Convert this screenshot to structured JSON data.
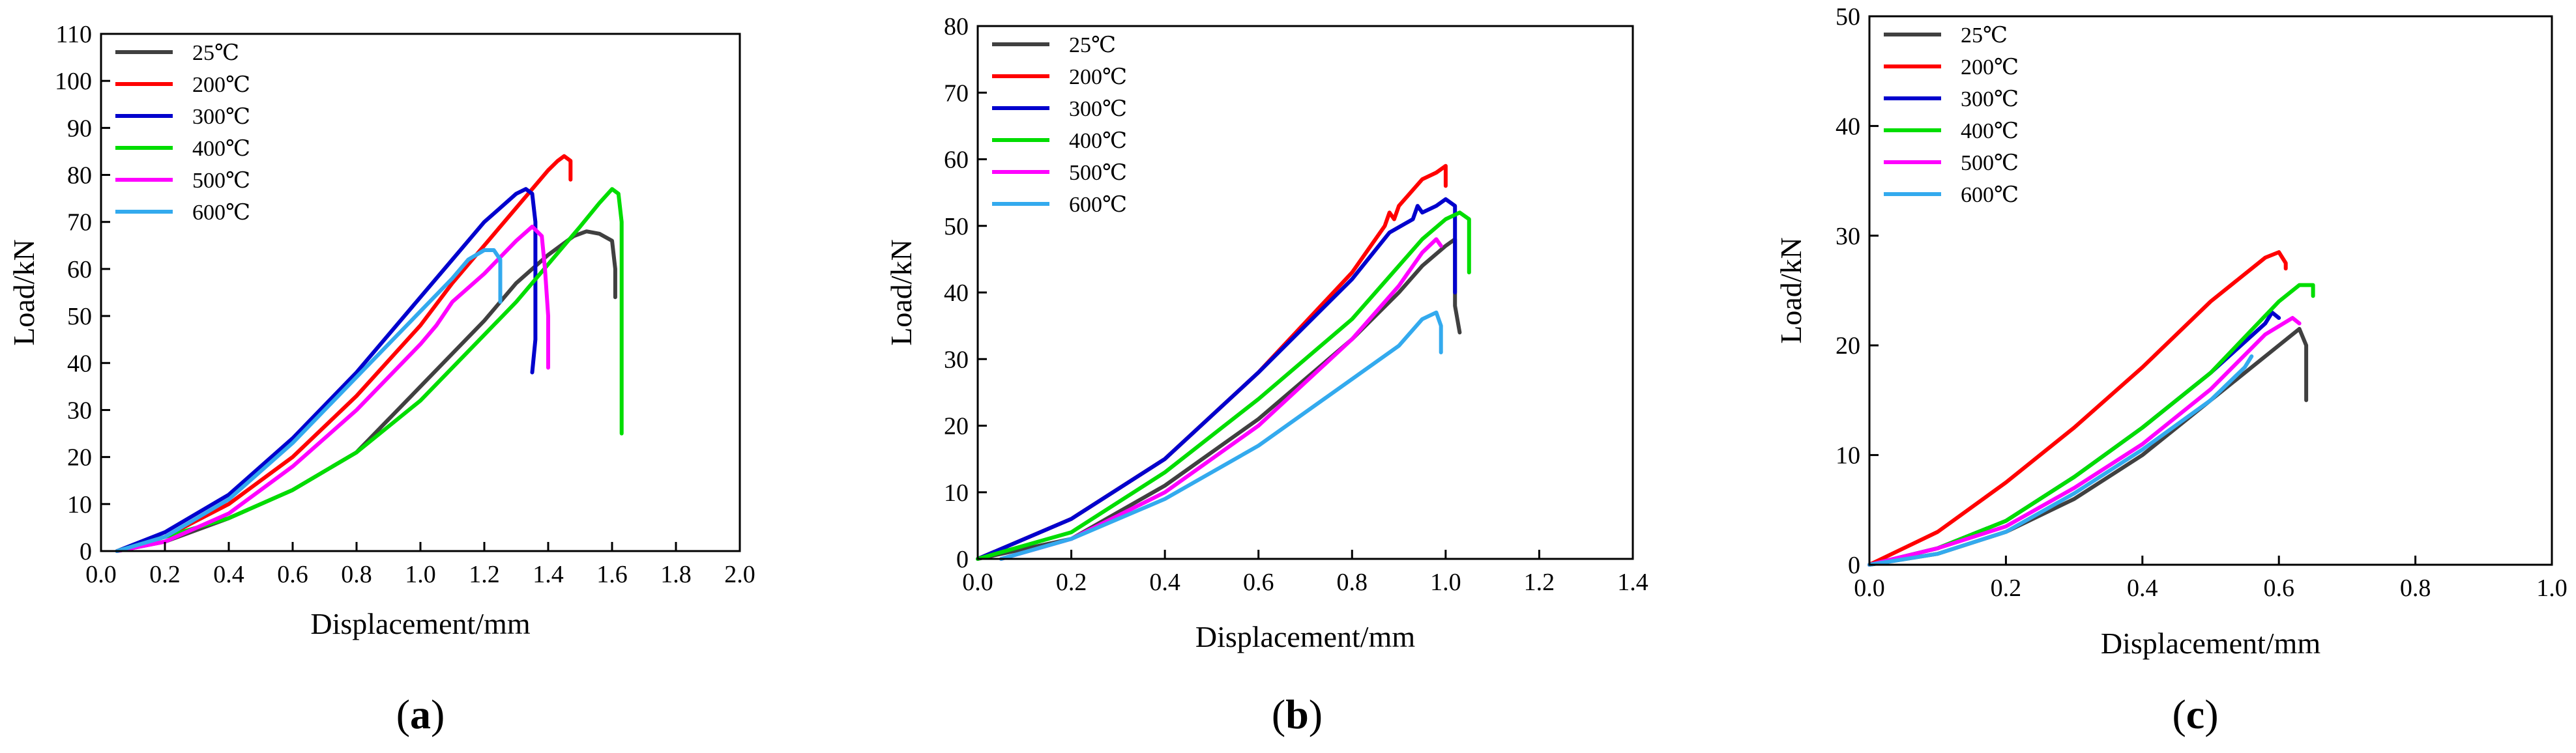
{
  "chart_data": [
    {
      "type": "line",
      "panel_label": "a",
      "xlabel": "Displacement/mm",
      "ylabel": "Load/kN",
      "xlim": [
        0,
        2.0
      ],
      "ylim": [
        0,
        110
      ],
      "xticks": [
        "0.0",
        "0.2",
        "0.4",
        "0.6",
        "0.8",
        "1.0",
        "1.2",
        "1.4",
        "1.6",
        "1.8",
        "2.0"
      ],
      "yticks": [
        "0",
        "10",
        "20",
        "30",
        "40",
        "50",
        "60",
        "70",
        "80",
        "90",
        "100",
        "110"
      ],
      "legend_position": "top-left",
      "series": [
        {
          "name": "25℃",
          "color": "#404040",
          "points": [
            [
              0.05,
              0
            ],
            [
              0.2,
              2
            ],
            [
              0.4,
              7
            ],
            [
              0.6,
              13
            ],
            [
              0.8,
              21
            ],
            [
              0.9,
              28
            ],
            [
              1.0,
              35
            ],
            [
              1.1,
              42
            ],
            [
              1.2,
              49
            ],
            [
              1.3,
              57
            ],
            [
              1.4,
              63
            ],
            [
              1.48,
              67
            ],
            [
              1.52,
              68
            ],
            [
              1.56,
              67.5
            ],
            [
              1.6,
              66
            ],
            [
              1.61,
              60
            ],
            [
              1.61,
              54
            ]
          ]
        },
        {
          "name": "200℃",
          "color": "#ff0000",
          "points": [
            [
              0.05,
              0
            ],
            [
              0.2,
              3
            ],
            [
              0.4,
              10
            ],
            [
              0.6,
              20
            ],
            [
              0.8,
              33
            ],
            [
              1.0,
              48
            ],
            [
              1.1,
              57
            ],
            [
              1.2,
              65
            ],
            [
              1.3,
              73
            ],
            [
              1.35,
              77
            ],
            [
              1.4,
              81
            ],
            [
              1.43,
              83
            ],
            [
              1.45,
              84
            ],
            [
              1.47,
              83
            ],
            [
              1.47,
              79
            ]
          ]
        },
        {
          "name": "300℃",
          "color": "#0000cd",
          "points": [
            [
              0.05,
              0
            ],
            [
              0.2,
              4
            ],
            [
              0.4,
              12
            ],
            [
              0.6,
              24
            ],
            [
              0.8,
              38
            ],
            [
              1.0,
              54
            ],
            [
              1.1,
              62
            ],
            [
              1.2,
              70
            ],
            [
              1.25,
              73
            ],
            [
              1.3,
              76
            ],
            [
              1.33,
              77
            ],
            [
              1.35,
              76
            ],
            [
              1.36,
              70
            ],
            [
              1.36,
              60
            ],
            [
              1.36,
              53
            ],
            [
              1.36,
              45
            ],
            [
              1.35,
              38
            ]
          ]
        },
        {
          "name": "400℃",
          "color": "#00dd00",
          "points": [
            [
              0.05,
              0
            ],
            [
              0.2,
              3
            ],
            [
              0.4,
              7
            ],
            [
              0.6,
              13
            ],
            [
              0.8,
              21
            ],
            [
              1.0,
              32
            ],
            [
              1.2,
              46
            ],
            [
              1.3,
              53
            ],
            [
              1.4,
              61
            ],
            [
              1.5,
              69
            ],
            [
              1.56,
              74
            ],
            [
              1.6,
              77
            ],
            [
              1.62,
              76
            ],
            [
              1.63,
              70
            ],
            [
              1.63,
              50
            ],
            [
              1.63,
              25
            ]
          ]
        },
        {
          "name": "500℃",
          "color": "#ff00ff",
          "points": [
            [
              0.05,
              0
            ],
            [
              0.2,
              2
            ],
            [
              0.4,
              8
            ],
            [
              0.6,
              18
            ],
            [
              0.8,
              30
            ],
            [
              1.0,
              44
            ],
            [
              1.05,
              48
            ],
            [
              1.07,
              50
            ],
            [
              1.1,
              53
            ],
            [
              1.2,
              59
            ],
            [
              1.3,
              66
            ],
            [
              1.35,
              69
            ],
            [
              1.38,
              67
            ],
            [
              1.39,
              60
            ],
            [
              1.4,
              50
            ],
            [
              1.4,
              39
            ]
          ]
        },
        {
          "name": "600℃",
          "color": "#33aaee",
          "points": [
            [
              0.05,
              0
            ],
            [
              0.2,
              3
            ],
            [
              0.4,
              11
            ],
            [
              0.6,
              23
            ],
            [
              0.8,
              37
            ],
            [
              1.0,
              51
            ],
            [
              1.1,
              58
            ],
            [
              1.15,
              62
            ],
            [
              1.2,
              64
            ],
            [
              1.23,
              64
            ],
            [
              1.25,
              62
            ],
            [
              1.25,
              58
            ],
            [
              1.25,
              53
            ]
          ]
        }
      ]
    },
    {
      "type": "line",
      "panel_label": "b",
      "xlabel": "Displacement/mm",
      "ylabel": "Load/kN",
      "xlim": [
        0,
        1.4
      ],
      "ylim": [
        0,
        80
      ],
      "xticks": [
        "0.0",
        "0.2",
        "0.4",
        "0.6",
        "0.8",
        "1.0",
        "1.2",
        "1.4"
      ],
      "yticks": [
        "0",
        "10",
        "20",
        "30",
        "40",
        "50",
        "60",
        "70",
        "80"
      ],
      "legend_position": "top-left",
      "series": [
        {
          "name": "25℃",
          "color": "#404040",
          "points": [
            [
              0,
              0
            ],
            [
              0.2,
              3
            ],
            [
              0.4,
              11
            ],
            [
              0.6,
              21
            ],
            [
              0.8,
              33
            ],
            [
              0.9,
              40
            ],
            [
              0.95,
              44
            ],
            [
              1.0,
              47
            ],
            [
              1.02,
              48
            ],
            [
              1.02,
              44
            ],
            [
              1.02,
              38
            ],
            [
              1.03,
              34
            ]
          ]
        },
        {
          "name": "200℃",
          "color": "#ff0000",
          "points": [
            [
              0,
              0
            ],
            [
              0.2,
              6
            ],
            [
              0.4,
              15
            ],
            [
              0.6,
              28
            ],
            [
              0.8,
              43
            ],
            [
              0.87,
              50
            ],
            [
              0.88,
              52
            ],
            [
              0.89,
              51
            ],
            [
              0.9,
              53
            ],
            [
              0.95,
              57
            ],
            [
              0.98,
              58
            ],
            [
              1.0,
              59
            ],
            [
              1.0,
              56
            ]
          ]
        },
        {
          "name": "300℃",
          "color": "#0000cd",
          "points": [
            [
              0,
              0
            ],
            [
              0.2,
              6
            ],
            [
              0.4,
              15
            ],
            [
              0.6,
              28
            ],
            [
              0.8,
              42
            ],
            [
              0.88,
              49
            ],
            [
              0.93,
              51
            ],
            [
              0.94,
              53
            ],
            [
              0.95,
              52
            ],
            [
              0.98,
              53
            ],
            [
              1.0,
              54
            ],
            [
              1.02,
              53
            ],
            [
              1.02,
              48
            ],
            [
              1.02,
              40
            ]
          ]
        },
        {
          "name": "400℃",
          "color": "#00dd00",
          "points": [
            [
              0,
              0
            ],
            [
              0.2,
              4
            ],
            [
              0.4,
              13
            ],
            [
              0.6,
              24
            ],
            [
              0.8,
              36
            ],
            [
              0.9,
              44
            ],
            [
              0.95,
              48
            ],
            [
              1.0,
              51
            ],
            [
              1.03,
              52
            ],
            [
              1.05,
              51
            ],
            [
              1.05,
              47
            ],
            [
              1.05,
              43
            ]
          ]
        },
        {
          "name": "500℃",
          "color": "#ff00ff",
          "points": [
            [
              0.05,
              0
            ],
            [
              0.2,
              3
            ],
            [
              0.4,
              10
            ],
            [
              0.6,
              20
            ],
            [
              0.8,
              33
            ],
            [
              0.9,
              41
            ],
            [
              0.95,
              46
            ],
            [
              0.98,
              48
            ],
            [
              0.99,
              47
            ]
          ]
        },
        {
          "name": "600℃",
          "color": "#33aaee",
          "points": [
            [
              0.05,
              0
            ],
            [
              0.2,
              3
            ],
            [
              0.4,
              9
            ],
            [
              0.6,
              17
            ],
            [
              0.8,
              27
            ],
            [
              0.9,
              32
            ],
            [
              0.95,
              36
            ],
            [
              0.98,
              37
            ],
            [
              0.99,
              35
            ],
            [
              0.99,
              31
            ]
          ]
        }
      ]
    },
    {
      "type": "line",
      "panel_label": "c",
      "xlabel": "Displacement/mm",
      "ylabel": "Load/kN",
      "xlim": [
        0,
        1.0
      ],
      "ylim": [
        0,
        50
      ],
      "xticks": [
        "0.0",
        "0.2",
        "0.4",
        "0.6",
        "0.8",
        "1.0"
      ],
      "yticks": [
        "0",
        "10",
        "20",
        "30",
        "40",
        "50"
      ],
      "legend_position": "top-left",
      "series": [
        {
          "name": "25℃",
          "color": "#404040",
          "points": [
            [
              0,
              0
            ],
            [
              0.1,
              1
            ],
            [
              0.2,
              3
            ],
            [
              0.3,
              6
            ],
            [
              0.4,
              10
            ],
            [
              0.5,
              15
            ],
            [
              0.6,
              20
            ],
            [
              0.63,
              21.5
            ],
            [
              0.64,
              20
            ],
            [
              0.64,
              17
            ],
            [
              0.64,
              15
            ]
          ]
        },
        {
          "name": "200℃",
          "color": "#ff0000",
          "points": [
            [
              0,
              0
            ],
            [
              0.1,
              3
            ],
            [
              0.2,
              7.5
            ],
            [
              0.3,
              12.5
            ],
            [
              0.4,
              18
            ],
            [
              0.5,
              24
            ],
            [
              0.58,
              28
            ],
            [
              0.6,
              28.5
            ],
            [
              0.61,
              27.5
            ],
            [
              0.61,
              27
            ]
          ]
        },
        {
          "name": "300℃",
          "color": "#0000cd",
          "points": [
            [
              0,
              0
            ],
            [
              0.1,
              1.5
            ],
            [
              0.2,
              4
            ],
            [
              0.3,
              8
            ],
            [
              0.4,
              12.5
            ],
            [
              0.5,
              17.5
            ],
            [
              0.58,
              22
            ],
            [
              0.59,
              23
            ],
            [
              0.6,
              22.5
            ]
          ]
        },
        {
          "name": "400℃",
          "color": "#00dd00",
          "points": [
            [
              0,
              0
            ],
            [
              0.1,
              1.5
            ],
            [
              0.2,
              4
            ],
            [
              0.3,
              8
            ],
            [
              0.4,
              12.5
            ],
            [
              0.5,
              17.5
            ],
            [
              0.6,
              24
            ],
            [
              0.63,
              25.5
            ],
            [
              0.65,
              25.5
            ],
            [
              0.65,
              24.5
            ]
          ]
        },
        {
          "name": "500℃",
          "color": "#ff00ff",
          "points": [
            [
              0,
              0
            ],
            [
              0.1,
              1.5
            ],
            [
              0.2,
              3.5
            ],
            [
              0.3,
              7
            ],
            [
              0.4,
              11
            ],
            [
              0.5,
              16
            ],
            [
              0.58,
              21
            ],
            [
              0.62,
              22.5
            ],
            [
              0.63,
              22
            ]
          ]
        },
        {
          "name": "600℃",
          "color": "#33aaee",
          "points": [
            [
              0,
              0
            ],
            [
              0.1,
              1
            ],
            [
              0.2,
              3
            ],
            [
              0.3,
              6.5
            ],
            [
              0.4,
              10.5
            ],
            [
              0.5,
              15
            ],
            [
              0.55,
              18
            ],
            [
              0.56,
              19
            ]
          ]
        }
      ]
    }
  ]
}
